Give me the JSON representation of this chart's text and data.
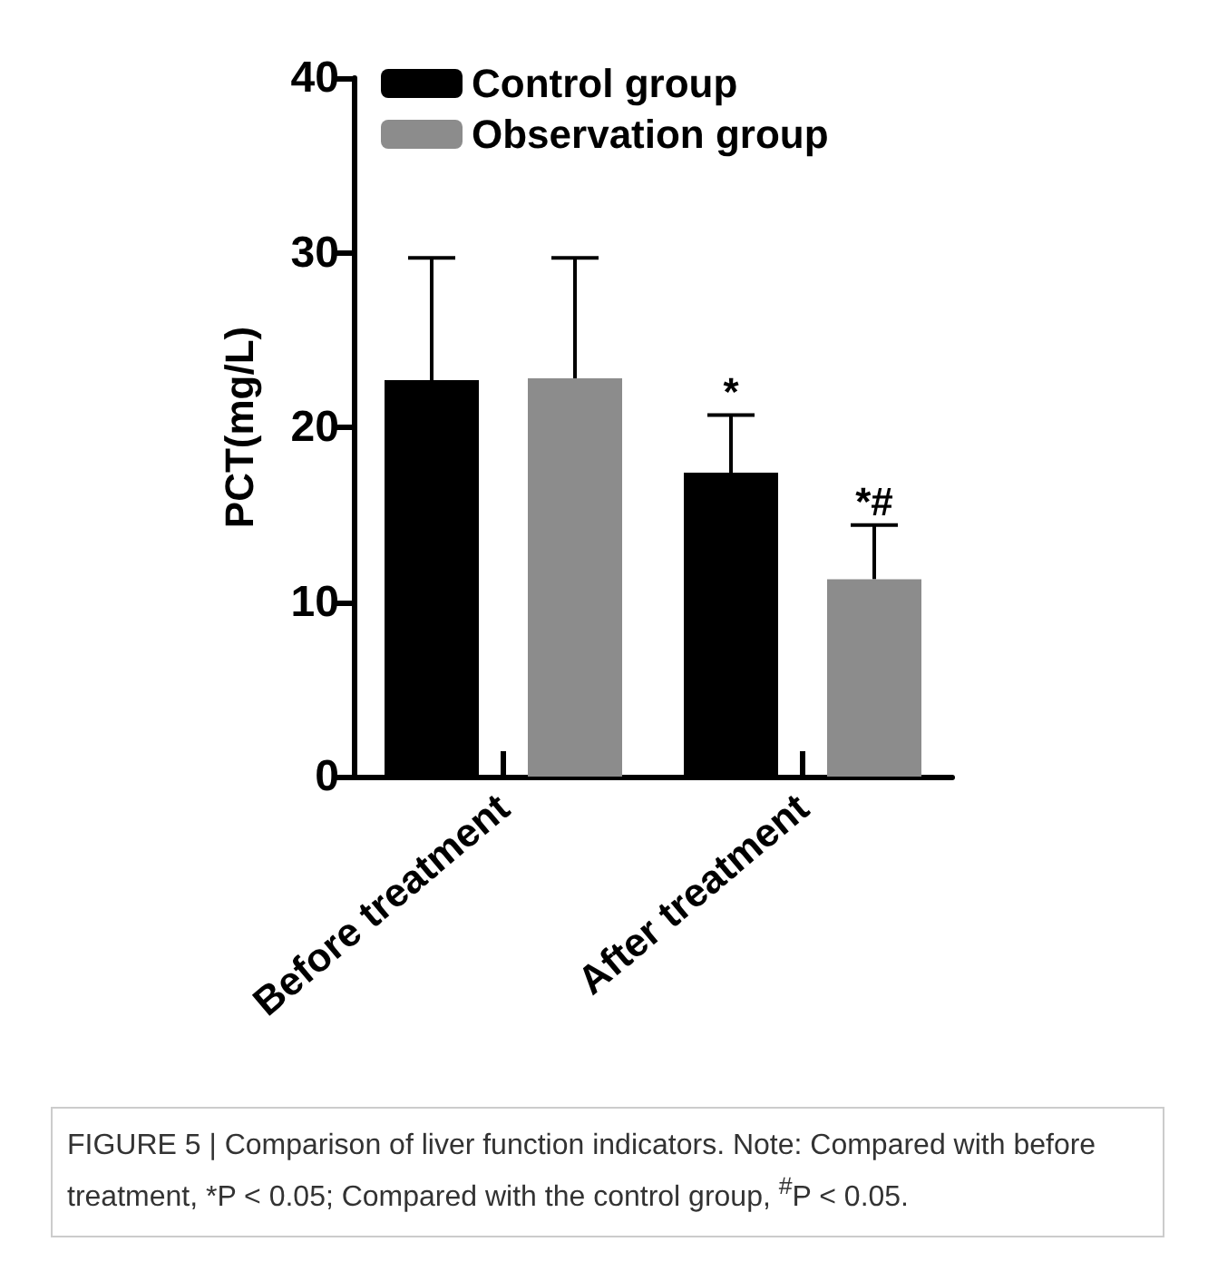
{
  "chart_data": {
    "type": "bar",
    "ylabel": "PCT(mg/L)",
    "categories": [
      "Before treatment",
      "After treatment"
    ],
    "series": [
      {
        "name": "Control group",
        "color": "#000000",
        "values": [
          22.7,
          17.4
        ],
        "errors": [
          [
            22.7,
            29.7
          ],
          [
            17.4,
            20.7
          ]
        ]
      },
      {
        "name": "Observation group",
        "color": "#8c8c8c",
        "values": [
          22.8,
          11.3
        ],
        "errors": [
          [
            22.8,
            29.7
          ],
          [
            11.3,
            14.4
          ]
        ]
      }
    ],
    "ylim": [
      0,
      40
    ],
    "yticks": [
      0,
      10,
      20,
      30,
      40
    ],
    "grid": false,
    "legend": "top left",
    "annotations": [
      "*",
      "*#",
      "FIGURE 5 | Comparison of liver function indicators. Note: Compared with before treatment, *P < 0.05; Compared with the control group, $^{#}$P < 0.05."
    ]
  }
}
